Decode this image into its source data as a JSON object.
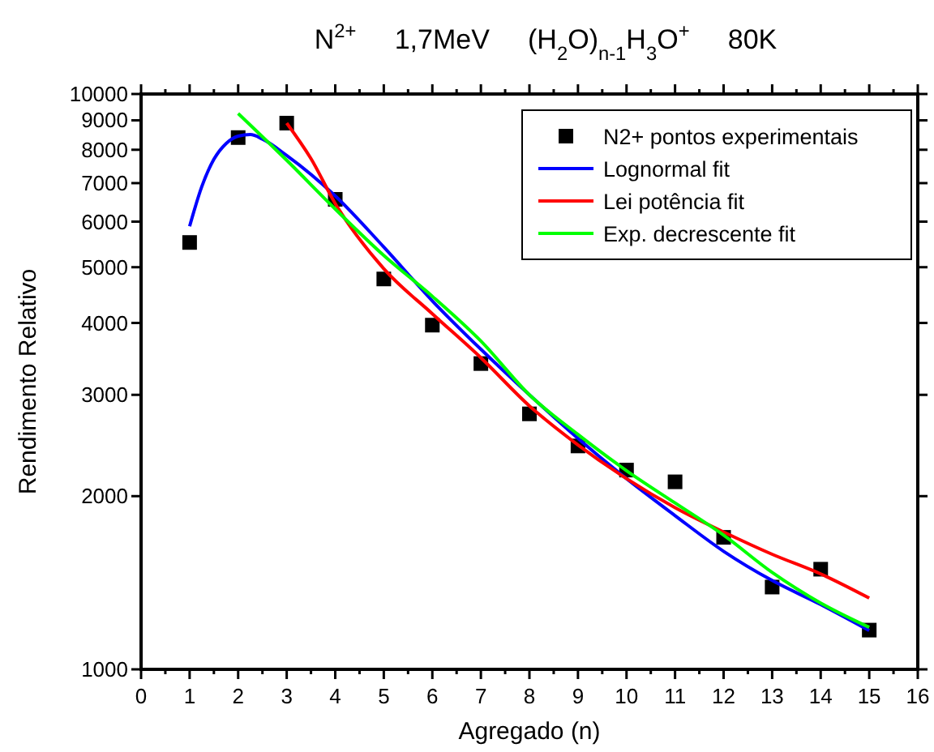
{
  "chart_data": {
    "type": "line",
    "title": "N$^{2+}$     1,7MeV     (H$_{2}$O)$_{n-1}$H$_{3}$O$^{+}$     80K",
    "xlabel": "Agregado (n)",
    "ylabel": "Rendimento Relativo",
    "log": "y",
    "xlim": [
      0,
      16
    ],
    "xticks": [
      0,
      1,
      2,
      3,
      4,
      5,
      6,
      7,
      8,
      9,
      10,
      11,
      12,
      13,
      14,
      15,
      16
    ],
    "ylim": [
      1000,
      10000
    ],
    "yticks": [
      1000,
      2000,
      3000,
      4000,
      5000,
      6000,
      7000,
      8000,
      9000,
      10000
    ],
    "grid": false,
    "legend": "top right",
    "series": [
      {
        "name": "N2+ pontos experimentais",
        "type": "scatter",
        "marker": "square",
        "color": "#000000",
        "x": [
          1,
          2,
          3,
          4,
          5,
          6,
          7,
          8,
          9,
          10,
          11,
          12,
          13,
          14,
          15
        ],
        "values": [
          5520,
          8400,
          8900,
          6560,
          4770,
          3965,
          3400,
          2780,
          2445,
          2220,
          2118,
          1696,
          1390,
          1493,
          1170
        ]
      },
      {
        "name": "Lognormal fit",
        "color": "#0000ff",
        "x": [
          1,
          1.25,
          1.5,
          1.75,
          2,
          2.25,
          2.5,
          3,
          4,
          5,
          6,
          7,
          8,
          9,
          10,
          11,
          12,
          13,
          14,
          15
        ],
        "values": [
          5890,
          6900,
          7700,
          8200,
          8450,
          8500,
          8350,
          7820,
          6650,
          5420,
          4370,
          3600,
          3000,
          2520,
          2145,
          1850,
          1604,
          1427,
          1296,
          1168
        ]
      },
      {
        "name": "Lei potência fit",
        "color": "#ff0000",
        "x": [
          3,
          3.5,
          4,
          5,
          6,
          7,
          8,
          9,
          10,
          11,
          12,
          13,
          14,
          15
        ],
        "values": [
          8900,
          7720,
          6450,
          4970,
          4150,
          3480,
          2870,
          2455,
          2145,
          1910,
          1733,
          1585,
          1465,
          1330
        ]
      },
      {
        "name": "Exp. decrescente fit",
        "color": "#00ff00",
        "x": [
          2,
          3,
          4,
          5,
          6,
          7,
          8,
          9,
          10,
          11,
          12,
          13,
          14,
          15
        ],
        "values": [
          9250,
          7670,
          6310,
          5240,
          4450,
          3720,
          3000,
          2560,
          2215,
          1946,
          1711,
          1474,
          1304,
          1183
        ]
      }
    ]
  }
}
